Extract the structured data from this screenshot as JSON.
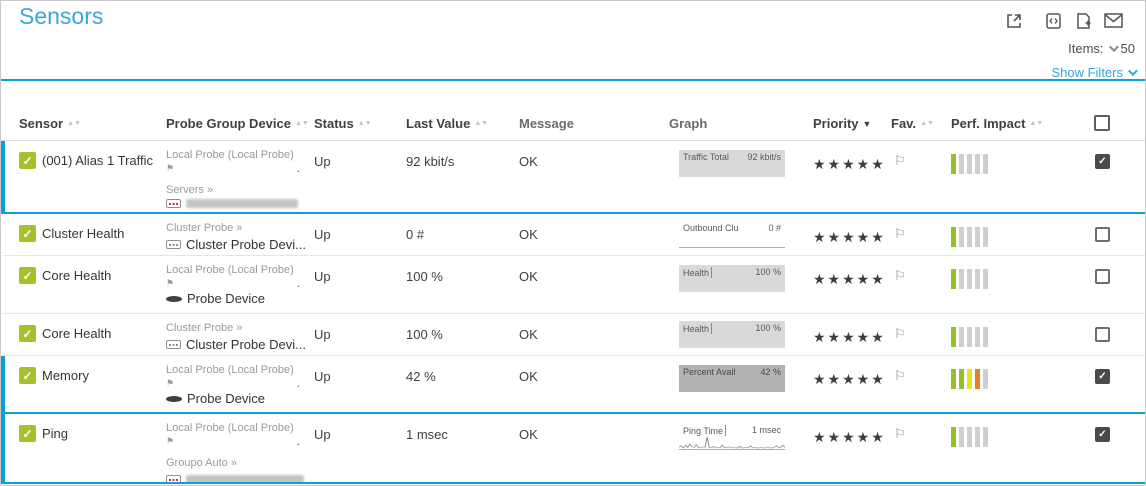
{
  "colors": {
    "accent": "#0ba1d4",
    "link_blue": "#2fa8dc",
    "up_green": "#a9bf2b"
  },
  "header": {
    "title": "Sensors",
    "toolbar_icons": [
      "external-link-icon",
      "code-file-icon",
      "file-plus-icon",
      "envelope-icon"
    ],
    "items_label": "Items:",
    "items_value": "50",
    "show_filters_label": "Show Filters"
  },
  "table": {
    "columns": [
      {
        "label": "Sensor",
        "sort": "both"
      },
      {
        "label": "Probe Group Device",
        "sort": "both"
      },
      {
        "label": "Status",
        "sort": "both"
      },
      {
        "label": "Last Value",
        "sort": "both"
      },
      {
        "label": "Message",
        "sort": "none"
      },
      {
        "label": "Graph",
        "sort": "none"
      },
      {
        "label": "Priority",
        "sort": "desc"
      },
      {
        "label": "Fav.",
        "sort": "both"
      },
      {
        "label": "Perf. Impact",
        "sort": "both"
      }
    ],
    "rows": [
      {
        "sensor": "(001) Alias 1 Traffic",
        "probe": {
          "group": "Local Probe (Local Probe)",
          "group_suffix": ".",
          "subgroup": "Servers »",
          "device_redacted": true
        },
        "status": "Up",
        "last_value": "92 kbit/s",
        "message": "OK",
        "graph": {
          "label": "Traffic Total",
          "value": "92 kbit/s"
        },
        "stars": 5,
        "perf": [
          "green",
          "gray",
          "gray",
          "gray",
          "gray"
        ],
        "checked": true
      },
      {
        "sensor": "Cluster Health",
        "probe": {
          "group": "Cluster Probe »",
          "device": "Cluster Probe Devi..."
        },
        "status": "Up",
        "last_value": "0 #",
        "message": "OK",
        "graph": {
          "label": "Outbound Clu",
          "value": "0 #"
        },
        "stars": 5,
        "perf": [
          "green",
          "gray",
          "gray",
          "gray",
          "gray"
        ],
        "checked": false
      },
      {
        "sensor": "Core Health",
        "probe": {
          "group": "Local Probe (Local Probe)",
          "group_suffix": ".",
          "device": "Probe Device"
        },
        "status": "Up",
        "last_value": "100 %",
        "message": "OK",
        "graph": {
          "label": "Health",
          "value": "100 %"
        },
        "stars": 5,
        "perf": [
          "green",
          "gray",
          "gray",
          "gray",
          "gray"
        ],
        "checked": false
      },
      {
        "sensor": "Core Health",
        "probe": {
          "group": "Cluster Probe »",
          "device": "Cluster Probe Devi..."
        },
        "status": "Up",
        "last_value": "100 %",
        "message": "OK",
        "graph": {
          "label": "Health",
          "value": "100 %"
        },
        "stars": 5,
        "perf": [
          "green",
          "gray",
          "gray",
          "gray",
          "gray"
        ],
        "checked": false
      },
      {
        "sensor": "Memory",
        "probe": {
          "group": "Local Probe (Local Probe)",
          "group_suffix": ".",
          "device": "Probe Device"
        },
        "status": "Up",
        "last_value": "42 %",
        "message": "OK",
        "graph": {
          "label": "Percent Avail",
          "value": "42 %"
        },
        "stars": 5,
        "perf": [
          "green",
          "green",
          "yellow",
          "orange",
          "gray"
        ],
        "checked": true
      },
      {
        "sensor": "Ping",
        "probe": {
          "group": "Local Probe (Local Probe)",
          "group_suffix": ".",
          "subgroup": "Groupo Auto »",
          "device_redacted": true,
          "redact_suffix": "."
        },
        "status": "Up",
        "last_value": "1 msec",
        "message": "OK",
        "graph": {
          "label": "Ping Time",
          "value": "1 msec",
          "sparkline": [
            3,
            6,
            2,
            7,
            3,
            9,
            4,
            3,
            8,
            3,
            2,
            4,
            3,
            22,
            3,
            2,
            5,
            2,
            3,
            2,
            7,
            2,
            3,
            4,
            2,
            3,
            2,
            2,
            5,
            2,
            2,
            3,
            2,
            6,
            2,
            3,
            2,
            2,
            3,
            2,
            2,
            4,
            2,
            2,
            3,
            6,
            2,
            3,
            7,
            3
          ]
        },
        "stars": 5,
        "perf": [
          "green",
          "gray",
          "gray",
          "gray",
          "gray"
        ],
        "checked": true
      }
    ]
  }
}
